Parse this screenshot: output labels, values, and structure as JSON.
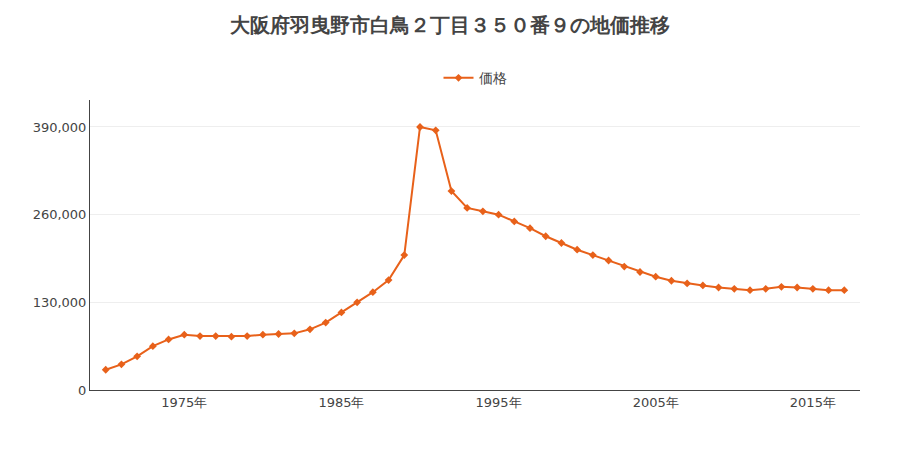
{
  "chart_data": {
    "type": "line",
    "title": "大阪府羽曳野市白鳥２丁目３５０番９の地価推移",
    "x": [
      1970,
      1971,
      1972,
      1973,
      1974,
      1975,
      1976,
      1977,
      1978,
      1979,
      1980,
      1981,
      1982,
      1983,
      1984,
      1985,
      1986,
      1987,
      1988,
      1989,
      1990,
      1991,
      1992,
      1993,
      1994,
      1995,
      1996,
      1997,
      1998,
      1999,
      2000,
      2001,
      2002,
      2003,
      2004,
      2005,
      2006,
      2007,
      2008,
      2009,
      2010,
      2011,
      2012,
      2013,
      2014,
      2015,
      2016,
      2017
    ],
    "series": [
      {
        "name": "価格",
        "color": "#e8611a",
        "marker": "diamond",
        "values": [
          30000,
          38000,
          50000,
          65000,
          75000,
          82000,
          80000,
          80000,
          79000,
          80000,
          82000,
          83000,
          84000,
          90000,
          100000,
          115000,
          130000,
          145000,
          163000,
          200000,
          390000,
          385000,
          295000,
          270000,
          265000,
          260000,
          250000,
          240000,
          228000,
          218000,
          208000,
          200000,
          192000,
          183000,
          175000,
          168000,
          162000,
          158000,
          155000,
          152000,
          150000,
          148000,
          150000,
          153000,
          152000,
          150000,
          148000,
          148000
        ]
      }
    ],
    "xlim": [
      1969,
      2018
    ],
    "xticks": [
      {
        "value": 1975,
        "label": "1975年"
      },
      {
        "value": 1985,
        "label": "1985年"
      },
      {
        "value": 1995,
        "label": "1995年"
      },
      {
        "value": 2005,
        "label": "2005年"
      },
      {
        "value": 2015,
        "label": "2015年"
      }
    ],
    "ylim": [
      0,
      430000
    ],
    "yticks": [
      0,
      {
        "value": 130000,
        "label": "130,000"
      },
      {
        "value": 260000,
        "label": "260,000"
      },
      {
        "value": 390000,
        "label": "390,000"
      }
    ],
    "grid": "y",
    "legend": "top"
  }
}
